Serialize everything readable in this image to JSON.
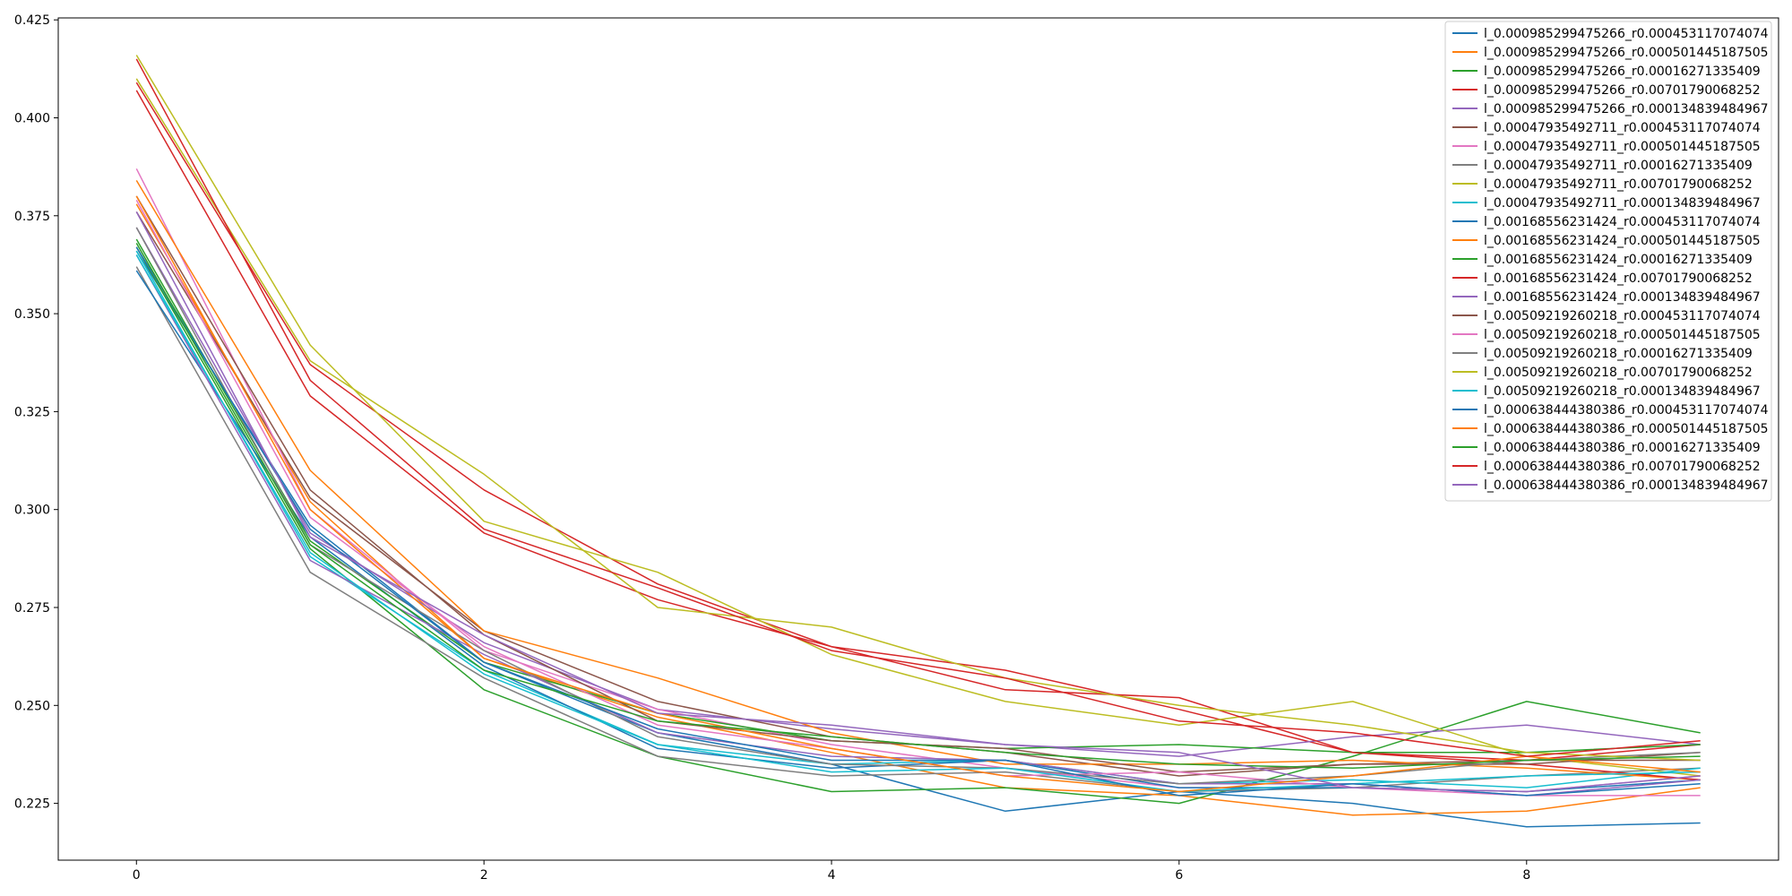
{
  "chart_data": {
    "type": "line",
    "title": "",
    "xlabel": "",
    "ylabel": "",
    "xlim": [
      -0.45,
      9.45
    ],
    "ylim": [
      0.2105,
      0.4255
    ],
    "x": [
      0,
      1,
      2,
      3,
      4,
      5,
      6,
      7,
      8,
      9
    ],
    "xticks": [
      0,
      2,
      4,
      6,
      8
    ],
    "yticks": [
      0.225,
      0.25,
      0.275,
      0.3,
      0.325,
      0.35,
      0.375,
      0.4,
      0.425
    ],
    "ytick_labels": [
      "0.225",
      "0.250",
      "0.275",
      "0.300",
      "0.325",
      "0.350",
      "0.375",
      "0.400",
      "0.425"
    ],
    "grid": false,
    "legend_position": "top-right",
    "series": [
      {
        "name": "l_0.000985299475266_r0.000453117074074",
        "color": "#1f77b4",
        "values": [
          0.366,
          0.296,
          0.261,
          0.243,
          0.235,
          0.223,
          0.228,
          0.225,
          0.219,
          0.22
        ]
      },
      {
        "name": "l_0.000985299475266_r0.000501445187505",
        "color": "#ff7f0e",
        "values": [
          0.378,
          0.302,
          0.262,
          0.247,
          0.238,
          0.229,
          0.227,
          0.222,
          0.223,
          0.229
        ]
      },
      {
        "name": "l_0.000985299475266_r0.00016271335409",
        "color": "#2ca02c",
        "values": [
          0.367,
          0.29,
          0.254,
          0.237,
          0.228,
          0.229,
          0.225,
          0.237,
          0.251,
          0.243
        ]
      },
      {
        "name": "l_0.000985299475266_r0.00701790068252",
        "color": "#d62728",
        "values": [
          0.409,
          0.337,
          0.305,
          0.281,
          0.265,
          0.259,
          0.249,
          0.238,
          0.236,
          0.24
        ]
      },
      {
        "name": "l_0.000985299475266_r0.000134839484967",
        "color": "#9467bd",
        "values": [
          0.372,
          0.294,
          0.266,
          0.249,
          0.244,
          0.24,
          0.237,
          0.242,
          0.245,
          0.24
        ]
      },
      {
        "name": "l_0.00047935492711_r0.000453117074074",
        "color": "#8c564b",
        "values": [
          0.376,
          0.303,
          0.269,
          0.251,
          0.242,
          0.238,
          0.232,
          0.235,
          0.236,
          0.236
        ]
      },
      {
        "name": "l_0.00047935492711_r0.000501445187505",
        "color": "#e377c2",
        "values": [
          0.387,
          0.3,
          0.264,
          0.249,
          0.24,
          0.234,
          0.229,
          0.229,
          0.227,
          0.227
        ]
      },
      {
        "name": "l_0.00047935492711_r0.00016271335409",
        "color": "#7f7f7f",
        "values": [
          0.362,
          0.284,
          0.257,
          0.237,
          0.232,
          0.233,
          0.228,
          0.229,
          0.232,
          0.234
        ]
      },
      {
        "name": "l_0.00047935492711_r0.00701790068252",
        "color": "#bcbd22",
        "values": [
          0.416,
          0.342,
          0.297,
          0.284,
          0.263,
          0.251,
          0.245,
          0.251,
          0.237,
          0.232
        ]
      },
      {
        "name": "l_0.00047935492711_r0.000134839484967",
        "color": "#17becf",
        "values": [
          0.366,
          0.288,
          0.259,
          0.24,
          0.235,
          0.236,
          0.23,
          0.231,
          0.229,
          0.234
        ]
      },
      {
        "name": "l_0.00168556231424_r0.000453117074074",
        "color": "#1f77b4",
        "values": [
          0.361,
          0.293,
          0.26,
          0.239,
          0.234,
          0.236,
          0.229,
          0.229,
          0.228,
          0.231
        ]
      },
      {
        "name": "l_0.00168556231424_r0.000501445187505",
        "color": "#ff7f0e",
        "values": [
          0.384,
          0.31,
          0.269,
          0.257,
          0.243,
          0.235,
          0.235,
          0.236,
          0.234,
          0.231
        ]
      },
      {
        "name": "l_0.00168556231424_r0.00016271335409",
        "color": "#2ca02c",
        "values": [
          0.369,
          0.292,
          0.261,
          0.248,
          0.241,
          0.239,
          0.24,
          0.238,
          0.238,
          0.24
        ]
      },
      {
        "name": "l_0.00168556231424_r0.00701790068252",
        "color": "#d62728",
        "values": [
          0.407,
          0.329,
          0.294,
          0.277,
          0.265,
          0.254,
          0.252,
          0.238,
          0.235,
          0.231
        ]
      },
      {
        "name": "l_0.00168556231424_r0.000134839484967",
        "color": "#9467bd",
        "values": [
          0.365,
          0.287,
          0.263,
          0.243,
          0.237,
          0.236,
          0.23,
          0.23,
          0.227,
          0.231
        ]
      },
      {
        "name": "l_0.00509219260218_r0.000453117074074",
        "color": "#8c564b",
        "values": [
          0.38,
          0.305,
          0.268,
          0.246,
          0.241,
          0.239,
          0.233,
          0.235,
          0.235,
          0.238
        ]
      },
      {
        "name": "l_0.00509219260218_r0.000501445187505",
        "color": "#e377c2",
        "values": [
          0.379,
          0.298,
          0.265,
          0.245,
          0.239,
          0.232,
          0.233,
          0.229,
          0.228,
          0.232
        ]
      },
      {
        "name": "l_0.00509219260218_r0.00016271335409",
        "color": "#7f7f7f",
        "values": [
          0.372,
          0.291,
          0.264,
          0.242,
          0.235,
          0.234,
          0.23,
          0.232,
          0.236,
          0.238
        ]
      },
      {
        "name": "l_0.00509219260218_r0.00701790068252",
        "color": "#bcbd22",
        "values": [
          0.41,
          0.338,
          0.309,
          0.275,
          0.27,
          0.257,
          0.25,
          0.245,
          0.238,
          0.236
        ]
      },
      {
        "name": "l_0.00509219260218_r0.000134839484967",
        "color": "#17becf",
        "values": [
          0.365,
          0.289,
          0.258,
          0.24,
          0.233,
          0.234,
          0.228,
          0.23,
          0.232,
          0.233
        ]
      },
      {
        "name": "l_0.000638444380386_r0.000453117074074",
        "color": "#1f77b4",
        "values": [
          0.367,
          0.295,
          0.261,
          0.244,
          0.236,
          0.236,
          0.227,
          0.23,
          0.227,
          0.23
        ]
      },
      {
        "name": "l_0.000638444380386_r0.000501445187505",
        "color": "#ff7f0e",
        "values": [
          0.38,
          0.3,
          0.262,
          0.248,
          0.239,
          0.232,
          0.228,
          0.232,
          0.237,
          0.233
        ]
      },
      {
        "name": "l_0.000638444380386_r0.00016271335409",
        "color": "#2ca02c",
        "values": [
          0.368,
          0.291,
          0.259,
          0.246,
          0.242,
          0.238,
          0.235,
          0.234,
          0.236,
          0.237
        ]
      },
      {
        "name": "l_0.000638444380386_r0.00701790068252",
        "color": "#d62728",
        "values": [
          0.415,
          0.333,
          0.295,
          0.28,
          0.264,
          0.257,
          0.246,
          0.243,
          0.237,
          0.241
        ]
      },
      {
        "name": "l_0.000638444380386_r0.000134839484967",
        "color": "#9467bd",
        "values": [
          0.376,
          0.293,
          0.268,
          0.248,
          0.245,
          0.24,
          0.238,
          0.229,
          0.228,
          0.232
        ]
      }
    ]
  }
}
